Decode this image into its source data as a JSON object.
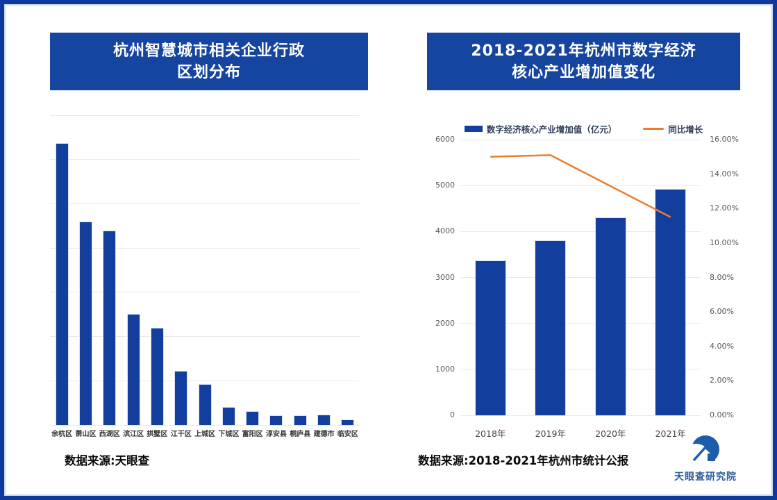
{
  "colors": {
    "frame_blue": "#0e3a9c",
    "inner_line": "#ccd7f0",
    "banner_blue": "#16459f",
    "bar_blue": "#123f9d",
    "line_orange": "#ed7c31",
    "gridline": "#e9e9e9",
    "axis_text": "#595959",
    "logo_blue": "#1d5cab"
  },
  "left_panel": {
    "title_line1": "杭州智慧城市相关企业行政",
    "title_line2": "区划分布",
    "source": "数据来源:天眼查"
  },
  "right_panel": {
    "title_line1": "2018-2021年杭州市数字经济",
    "title_line2": "核心产业增加值变化",
    "source": "数据来源:2018-2021年杭州市统计公报",
    "legend": [
      {
        "label": "数字经济核心产业增加值（亿元）",
        "swatch": "bar",
        "color": "#123f9d"
      },
      {
        "label": "同比增长",
        "swatch": "line",
        "color": "#ed7c31"
      }
    ],
    "logo_text": "天眼查研究院"
  },
  "chart_data": [
    {
      "type": "bar",
      "title": "杭州智慧城市相关企业行政区划分布",
      "categories": [
        "余杭区",
        "萧山区",
        "西湖区",
        "滨江区",
        "拱墅区",
        "江干区",
        "上城区",
        "下城区",
        "富阳区",
        "淳安县",
        "桐庐县",
        "建德市",
        "临安区"
      ],
      "values": [
        6360,
        4580,
        4380,
        2500,
        2180,
        1210,
        910,
        390,
        300,
        200,
        200,
        220,
        110
      ],
      "xlabel": "",
      "ylabel": "",
      "ylim": [
        0,
        7000
      ],
      "gridline_interval": 1000,
      "grid": true,
      "y_tick_labels_shown": false,
      "bar_color": "#123f9d"
    },
    {
      "type": "bar+line",
      "title": "2018-2021年杭州市数字经济核心产业增加值变化",
      "categories": [
        "2018年",
        "2019年",
        "2020年",
        "2021年"
      ],
      "series": [
        {
          "name": "数字经济核心产业增加值（亿元）",
          "type": "bar",
          "axis": "left",
          "values": [
            3356,
            3795,
            4290,
            4905
          ],
          "color": "#123f9d"
        },
        {
          "name": "同比增长",
          "type": "line",
          "axis": "right",
          "values_percent": [
            15.0,
            15.1,
            13.3,
            11.5
          ],
          "color": "#ed7c31"
        }
      ],
      "left_axis": {
        "ticks": [
          "6000",
          "5000",
          "4000",
          "3000",
          "2000",
          "1000",
          "0"
        ],
        "min": 0,
        "max": 6000
      },
      "right_axis": {
        "ticks": [
          "16.00%",
          "14.00%",
          "12.00%",
          "10.00%",
          "8.00%",
          "6.00%",
          "4.00%",
          "2.00%",
          "0.00%"
        ],
        "min": 0,
        "max": 16
      },
      "grid": true,
      "legend_position": "top-center"
    }
  ]
}
